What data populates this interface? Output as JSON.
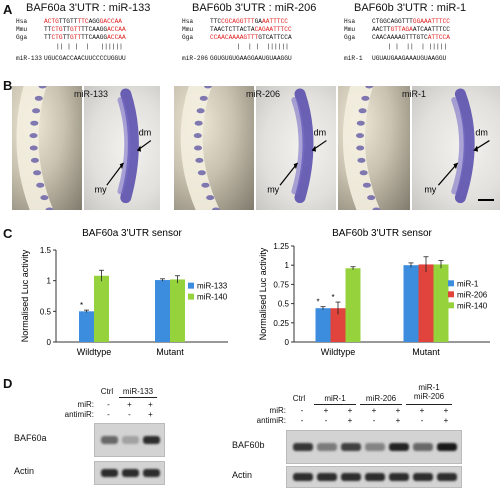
{
  "panelA": {
    "letter": "A",
    "blocks": [
      {
        "title": "BAF60a 3'UTR : miR-133",
        "rows": [
          {
            "sp": "Hsa",
            "segs": [
              [
                "ACTG",
                "r"
              ],
              [
                "TTGTT",
                "k"
              ],
              [
                "TTC",
                "r"
              ],
              [
                "AGG",
                "k"
              ],
              [
                "GACCAA",
                "r"
              ]
            ]
          },
          {
            "sp": "Mmu",
            "segs": [
              [
                "TT",
                "k"
              ],
              [
                "CTG",
                "r"
              ],
              [
                "TT",
                "k"
              ],
              [
                "GTT",
                "r"
              ],
              [
                "TTCAAGG",
                "k"
              ],
              [
                "ACCAA",
                "r"
              ]
            ]
          },
          {
            "sp": "Gga",
            "segs": [
              [
                "TT",
                "k"
              ],
              [
                "CTG",
                "r"
              ],
              [
                "TT",
                "k"
              ],
              [
                "GTT",
                "r"
              ],
              [
                "TTCAAGG",
                "k"
              ],
              [
                "ACCAA",
                "r"
              ]
            ]
          }
        ],
        "ticks": "|| | |  |   ||||||",
        "mirna_name": "miR-133",
        "mirna_seq": "UGUCGACCAACUUCCCCUGGUU"
      },
      {
        "title": "BAF60b 3'UTR : miR-206",
        "rows": [
          {
            "sp": "Hsa",
            "segs": [
              [
                "TTC",
                "k"
              ],
              [
                "CGCAGGTTT",
                "r"
              ],
              [
                "GA",
                "k"
              ],
              [
                "AATTTCC",
                "r"
              ]
            ]
          },
          {
            "sp": "Mmu",
            "segs": [
              [
                "TAACTCTTACTA",
                "k"
              ],
              [
                "CAGAATTTCC",
                "r"
              ]
            ]
          },
          {
            "sp": "Gga",
            "segs": [
              [
                "CCAACAAAAGTTT",
                "r"
              ],
              [
                "GTCATTCCA",
                "k"
              ]
            ]
          }
        ],
        "ticks": "    |  | |  ||||||",
        "mirna_name": "miR-206",
        "mirna_seq": "GGUGUGUGAAGGAAUGUAAGGU"
      },
      {
        "title": "BAF60b 3'UTR : miR-1",
        "rows": [
          {
            "sp": "Hsa",
            "segs": [
              [
                "CTGGCAGGTTT",
                "k"
              ],
              [
                "GGAAATTTCC",
                "r"
              ]
            ]
          },
          {
            "sp": "Mmu",
            "segs": [
              [
                "AACTT",
                "k"
              ],
              [
                "GTTAGA",
                "r"
              ],
              [
                "ATCAATTTCC",
                "k"
              ]
            ]
          },
          {
            "sp": "Gga",
            "segs": [
              [
                "CAACAAAAGTTTGTC",
                "k"
              ],
              [
                "ATTCCA",
                "r"
              ]
            ]
          }
        ],
        "ticks": " | |  ||  | |||||",
        "mirna_name": "miR-1",
        "mirna_seq": "UGUAUGAAGAAAUGUAAGGU"
      }
    ]
  },
  "panelB": {
    "letter": "B",
    "groups": [
      {
        "label": "miR-133",
        "dm": "dm",
        "my": "my"
      },
      {
        "label": "miR-206",
        "dm": "dm",
        "my": "my"
      },
      {
        "label": "miR-1",
        "dm": "dm",
        "my": "my"
      }
    ]
  },
  "panelC": {
    "letter": "C",
    "ylabel": "Normalised Luc activity",
    "star": "*"
  },
  "chart_data": [
    {
      "type": "bar",
      "title": "BAF60a 3'UTR sensor",
      "ylabel": "Normalised Luc activity",
      "categories": [
        "Wildtype",
        "Mutant"
      ],
      "ylim": [
        0,
        1.5
      ],
      "yticks": [
        "0",
        "0.5",
        "1",
        "1.5"
      ],
      "series": [
        {
          "name": "miR-133",
          "color": "#3c8dde",
          "values": [
            0.5,
            1.01
          ],
          "errors": [
            0.02,
            0.02
          ]
        },
        {
          "name": "miR-140",
          "color": "#96d23c",
          "values": [
            1.08,
            1.02
          ],
          "errors": [
            0.09,
            0.06
          ]
        }
      ],
      "significant": [
        "*",
        ""
      ],
      "legend": "right"
    },
    {
      "type": "bar",
      "title": "BAF60b 3'UTR sensor",
      "ylabel": "Normalised Luc activity",
      "categories": [
        "Wildtype",
        "Mutant"
      ],
      "ylim": [
        0,
        1.25
      ],
      "yticks": [
        "0",
        "0.25",
        "0.5",
        "0.75",
        "1",
        "1.25"
      ],
      "series": [
        {
          "name": "miR-1",
          "color": "#3c8dde",
          "values": [
            0.44,
            1.0
          ],
          "errors": [
            0.02,
            0.03
          ]
        },
        {
          "name": "miR-206",
          "color": "#e0443c",
          "values": [
            0.44,
            1.01
          ],
          "errors": [
            0.08,
            0.1
          ]
        },
        {
          "name": "miR-140",
          "color": "#96d23c",
          "values": [
            0.96,
            1.01
          ],
          "errors": [
            0.02,
            0.05
          ]
        }
      ],
      "significant": [
        "*",
        "*",
        ""
      ],
      "legend": "right"
    }
  ],
  "panelD": {
    "letter": "D",
    "left": {
      "header": [
        "Ctrl",
        "miR-133"
      ],
      "rows": [
        {
          "label": "miR:",
          "vals": [
            "-",
            "+",
            "+"
          ]
        },
        {
          "label": "antimiR:",
          "vals": [
            "-",
            "-",
            "+"
          ]
        }
      ],
      "blots": [
        "BAF60a",
        "Actin"
      ],
      "intensity": [
        0.55,
        0.25,
        0.85
      ]
    },
    "right": {
      "header": [
        "Ctrl",
        "miR-1",
        "miR-206",
        "miR-1\nmiR-206"
      ],
      "rows": [
        {
          "label": "miR:",
          "vals": [
            "-",
            "+",
            "+",
            "+",
            "+",
            "+",
            "+"
          ]
        },
        {
          "label": "antimiR:",
          "vals": [
            "-",
            "-",
            "+",
            "-",
            "+",
            "-",
            "+"
          ]
        }
      ],
      "blots": [
        "BAF60b",
        "Actin"
      ],
      "intensity": [
        0.8,
        0.45,
        0.75,
        0.4,
        0.9,
        0.55,
        0.95
      ]
    }
  }
}
